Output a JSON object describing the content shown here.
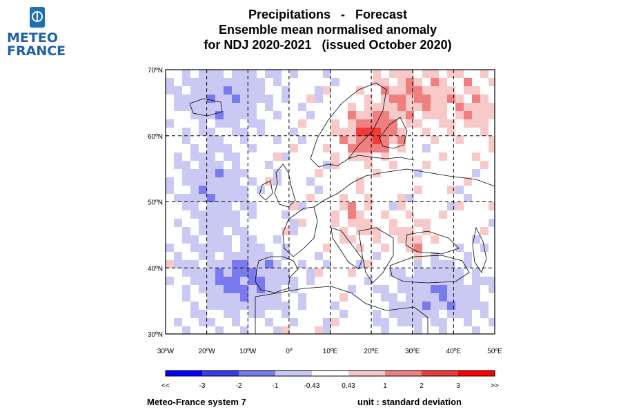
{
  "logo": {
    "line1": "METEO",
    "line2": "FRANCE",
    "icon": "meteo-france-logo-icon"
  },
  "title": {
    "line1": "Precipitations   -   Forecast",
    "line2": "Ensemble mean normalised anomaly",
    "line3": "for NDJ 2020-2021   (issued October 2020)"
  },
  "map": {
    "lat_labels": [
      "70ºN",
      "60ºN",
      "50ºN",
      "40ºN",
      "30ºN"
    ],
    "lon_labels": [
      "30ºW",
      "20ºW",
      "10ºW",
      "0º",
      "10ºE",
      "20ºE",
      "30ºE",
      "40ºE",
      "50ºE"
    ],
    "extent": {
      "lon": [
        -30,
        50
      ],
      "lat": [
        30,
        70
      ]
    }
  },
  "colorbar": {
    "labels": [
      "<<",
      "-3",
      "-2",
      "-1",
      "-0.43",
      "0.43",
      "1",
      "2",
      "3",
      ">>"
    ],
    "colors": [
      "#0000ff",
      "#3a3aef",
      "#7a7aef",
      "#c9c9f4",
      "#ffffff",
      "#f7c9c9",
      "#f08080",
      "#f03a3a",
      "#ff0000"
    ]
  },
  "footer": {
    "left": "Meteo-France system 7",
    "right": "unit : standard deviation"
  }
}
